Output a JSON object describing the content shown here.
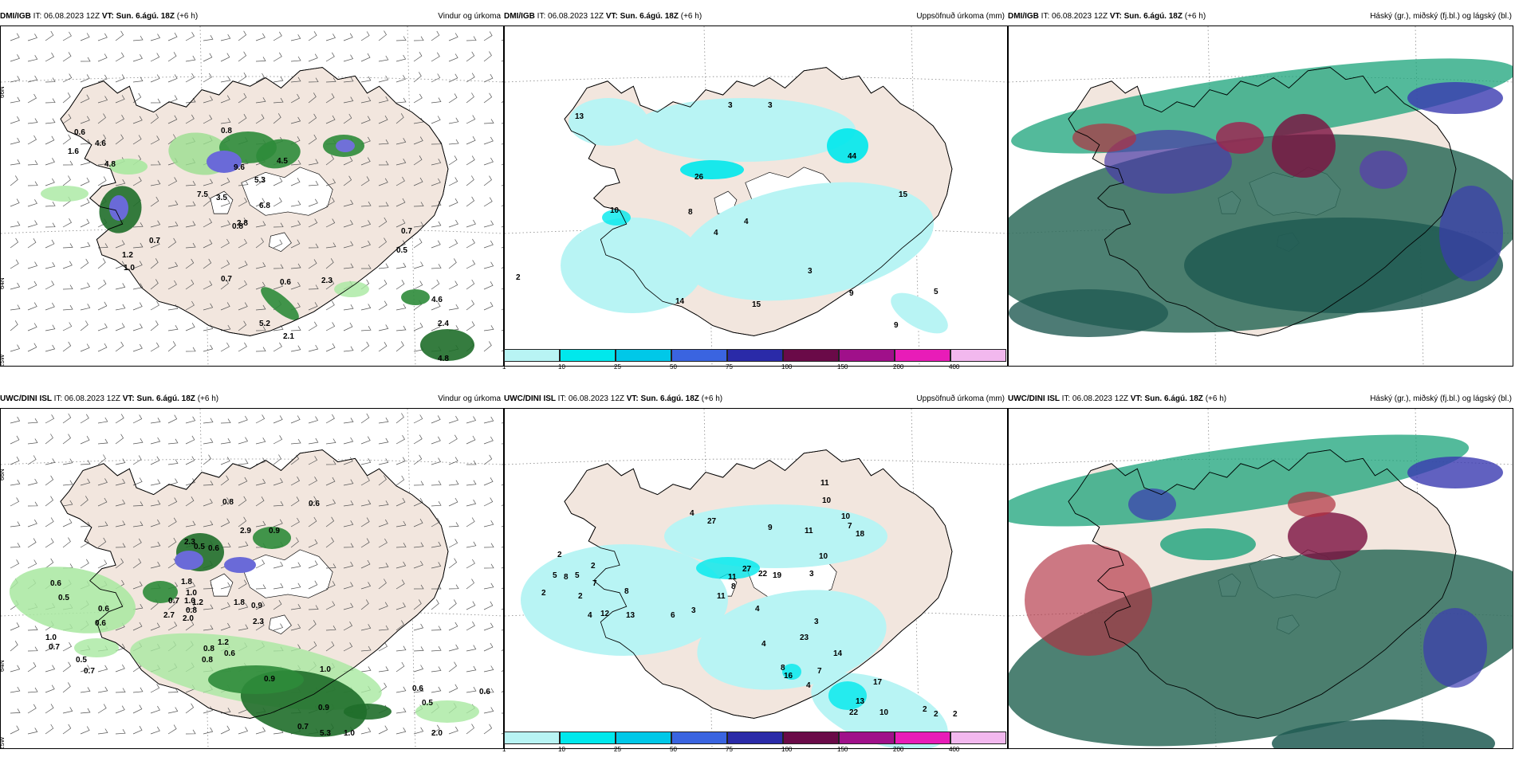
{
  "panels": [
    {
      "source": "DMI/IGB",
      "it": "IT: 06.08.2023 12Z",
      "vt_label": "VT:",
      "vt_value": "Sun. 6.ágú. 18Z",
      "lead": "(+6 h)",
      "title": "Vindur og úrkoma"
    },
    {
      "source": "DMI/IGB",
      "it": "IT: 06.08.2023 12Z",
      "vt_label": "VT:",
      "vt_value": "Sun. 6.ágú. 18Z",
      "lead": "(+6 h)",
      "title": "Uppsöfnuð úrkoma (mm)"
    },
    {
      "source": "DMI/IGB",
      "it": "IT: 06.08.2023 12Z",
      "vt_label": "VT:",
      "vt_value": "Sun. 6.ágú. 18Z",
      "lead": "(+6 h)",
      "title": "Háský (gr.), miðský (fj.bl.) og lágský (bl.)"
    },
    {
      "source": "UWC/DINI ISL",
      "it": "IT: 06.08.2023 12Z",
      "vt_label": "VT:",
      "vt_value": "Sun. 6.ágú. 18Z",
      "lead": "(+6 h)",
      "title": "Vindur og úrkoma"
    },
    {
      "source": "UWC/DINI ISL",
      "it": "IT: 06.08.2023 12Z",
      "vt_label": "VT:",
      "vt_value": "Sun. 6.ágú. 18Z",
      "lead": "(+6 h)",
      "title": "Uppsöfnuð úrkoma (mm)"
    },
    {
      "source": "UWC/DINI ISL",
      "it": "IT: 06.08.2023 12Z",
      "vt_label": "VT:",
      "vt_value": "Sun. 6.ágú. 18Z",
      "lead": "(+6 h)",
      "title": "Háský (gr.), miðský (fj.bl.) og lágský (bl.)"
    }
  ],
  "grid_labels": {
    "lat_66": "66N",
    "lat_64": "64N",
    "lat_63": "63N",
    "lon_25": "25W",
    "lon_20": "20W",
    "lon_15": "15W"
  },
  "colorbar": {
    "ticks": [
      "1",
      "10",
      "25",
      "50",
      "75",
      "100",
      "150",
      "200",
      "400"
    ],
    "colors": [
      "#b8f4f4",
      "#00e8ec",
      "#00c8e8",
      "#3a64e0",
      "#2a2aa8",
      "#6a0a48",
      "#a0108a",
      "#e81cb8",
      "#f2b8ee"
    ]
  },
  "wind_precip_top_labels": [
    "0.6",
    "4.6",
    "1.6",
    "0.8",
    "4.8",
    "7.5",
    "3.5",
    "9.6",
    "5.3",
    "6.8",
    "4.5",
    "2.8",
    "0.7",
    "0.8",
    "0.7",
    "0.5",
    "0.7",
    "0.6",
    "1.2",
    "1.0",
    "5.2",
    "0.7",
    "4.6",
    "4.8",
    "2.4",
    "2.3",
    "2.1"
  ],
  "wind_precip_bottom_labels": [
    "0.8",
    "0.6",
    "2.3",
    "0.5",
    "0.6",
    "2.9",
    "0.9",
    "1.8",
    "1.0",
    "0.6",
    "0.5",
    "0.6",
    "1.0",
    "0.7",
    "0.5",
    "0.6",
    "0.7",
    "0.7",
    "1.0",
    "1.2",
    "2.0",
    "2.7",
    "0.8",
    "0.9",
    "2.3",
    "1.8",
    "1.2",
    "0.8",
    "0.8",
    "0.6",
    "0.9",
    "1.0",
    "0.9",
    "0.7",
    "5.3",
    "1.0",
    "0.6",
    "0.5",
    "2.0",
    "0.6"
  ],
  "accum_top_labels": [
    "13",
    "3",
    "3",
    "44",
    "26",
    "15",
    "10",
    "8",
    "4",
    "4",
    "2",
    "3",
    "9",
    "5",
    "14",
    "15",
    "9"
  ],
  "accum_bottom_labels": [
    "11",
    "10",
    "4",
    "27",
    "9",
    "11",
    "10",
    "7",
    "18",
    "10",
    "27",
    "22",
    "19",
    "3",
    "11",
    "8",
    "2",
    "2",
    "5",
    "8",
    "5",
    "7",
    "2",
    "8",
    "2",
    "4",
    "12",
    "13",
    "6",
    "3",
    "11",
    "4",
    "3",
    "4",
    "8",
    "23",
    "7",
    "4",
    "16",
    "14",
    "17",
    "13",
    "22",
    "10",
    "2",
    "2",
    "2",
    "4"
  ]
}
